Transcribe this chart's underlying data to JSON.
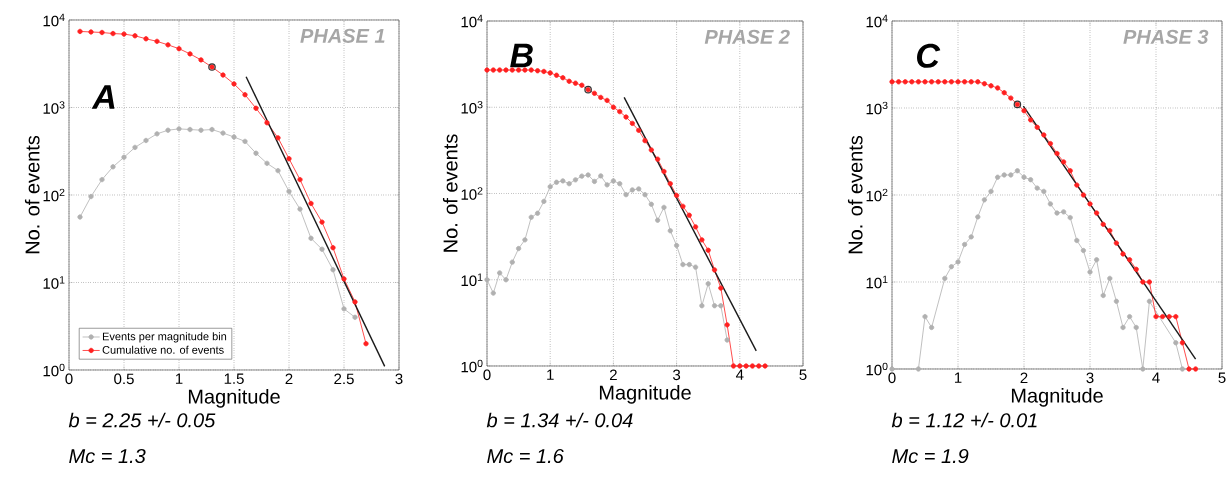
{
  "chart_data": [
    {
      "type": "line",
      "title": "A",
      "subtitle": "PHASE 1",
      "xlabel": "Magnitude",
      "ylabel": "No. of events",
      "annotations": [
        "b = 2.25 +/- 0.05",
        "Mc = 1.3"
      ],
      "log": "y",
      "grid": true,
      "legend": "bottom left",
      "marker": "circle",
      "xlim": [
        0,
        3
      ],
      "xticks": [
        0,
        0.5,
        1,
        1.5,
        2,
        2.5,
        3
      ],
      "ylim": [
        1,
        10000
      ],
      "yticks": [
        {
          "value": 1,
          "label": "10$^{0}$"
        },
        {
          "value": 10,
          "label": "10$^{1}$"
        },
        {
          "value": 100,
          "label": "10$^{2}$"
        },
        {
          "value": 1000,
          "label": "10$^{3}$"
        },
        {
          "value": 10000,
          "label": "10$^{4}$"
        }
      ],
      "series": [
        {
          "name": "Events per magnitude bin",
          "color": "#b0b0b0",
          "x": [
            0.1,
            0.2,
            0.3,
            0.4,
            0.5,
            0.6,
            0.7,
            0.8,
            0.9,
            1.0,
            1.1,
            1.2,
            1.3,
            1.4,
            1.5,
            1.6,
            1.7,
            1.8,
            1.9,
            2.0,
            2.1,
            2.2,
            2.3,
            2.4,
            2.5,
            2.6
          ],
          "values": [
            56,
            96,
            150,
            210,
            270,
            350,
            420,
            500,
            550,
            570,
            560,
            550,
            560,
            510,
            460,
            410,
            300,
            230,
            190,
            110,
            69,
            32,
            24,
            14,
            5,
            4
          ]
        },
        {
          "name": "Cumulative no. of events",
          "color": "#ff2020",
          "x": [
            0.1,
            0.2,
            0.3,
            0.4,
            0.5,
            0.6,
            0.7,
            0.8,
            0.9,
            1.0,
            1.1,
            1.2,
            1.3,
            1.4,
            1.5,
            1.6,
            1.7,
            1.8,
            1.9,
            2.0,
            2.1,
            2.2,
            2.3,
            2.4,
            2.5,
            2.6,
            2.7
          ],
          "values": [
            7400,
            7300,
            7200,
            7000,
            6900,
            6600,
            6100,
            5700,
            5200,
            4700,
            4100,
            3500,
            2900,
            2350,
            1860,
            1400,
            980,
            670,
            450,
            260,
            150,
            80,
            49,
            25,
            11,
            6,
            2
          ]
        },
        {
          "type": "scatter",
          "color": "#333333",
          "x": [
            1.3
          ],
          "values": [
            2900
          ]
        },
        {
          "type": "line",
          "marker": "none",
          "color": "#1a1a1a",
          "x": [
            1.61,
            2.87
          ],
          "values": [
            2250,
            1.1
          ]
        }
      ]
    },
    {
      "type": "line",
      "title": "B",
      "subtitle": "PHASE 2",
      "xlabel": "Magnitude",
      "ylabel": "No. of events",
      "annotations": [
        "b = 1.34 +/- 0.04",
        "Mc = 1.6"
      ],
      "log": "y",
      "grid": true,
      "marker": "circle",
      "xlim": [
        0,
        5
      ],
      "xticks": [
        0,
        1,
        2,
        3,
        4,
        5
      ],
      "ylim": [
        1,
        10000
      ],
      "yticks": [
        {
          "value": 1,
          "label": "10$^{0}$"
        },
        {
          "value": 10,
          "label": "10$^{1}$"
        },
        {
          "value": 100,
          "label": "10$^{2}$"
        },
        {
          "value": 1000,
          "label": "10$^{3}$"
        },
        {
          "value": 10000,
          "label": "10$^{4}$"
        }
      ],
      "series": [
        {
          "color": "#b0b0b0",
          "x": [
            0,
            0.1,
            0.2,
            0.3,
            0.4,
            0.5,
            0.6,
            0.7,
            0.8,
            0.9,
            1.0,
            1.1,
            1.2,
            1.3,
            1.4,
            1.5,
            1.6,
            1.7,
            1.8,
            1.9,
            2.0,
            2.1,
            2.2,
            2.3,
            2.4,
            2.5,
            2.6,
            2.7,
            2.8,
            2.9,
            3.0,
            3.1,
            3.2,
            3.3,
            3.4,
            3.5,
            3.6,
            3.7,
            3.8
          ],
          "values": [
            10,
            7,
            12,
            10,
            16,
            23,
            29,
            53,
            59,
            81,
            120,
            135,
            140,
            130,
            144,
            159,
            164,
            138,
            160,
            126,
            140,
            130,
            97,
            110,
            113,
            97,
            75,
            49,
            69,
            37,
            25,
            15,
            15,
            14,
            5,
            9,
            5,
            5,
            2
          ]
        },
        {
          "color": "#ff2020",
          "x": [
            0,
            0.1,
            0.2,
            0.3,
            0.4,
            0.5,
            0.6,
            0.7,
            0.8,
            0.9,
            1.0,
            1.1,
            1.2,
            1.3,
            1.4,
            1.5,
            1.6,
            1.7,
            1.8,
            1.9,
            2.0,
            2.1,
            2.2,
            2.3,
            2.4,
            2.5,
            2.6,
            2.7,
            2.8,
            2.9,
            3.0,
            3.1,
            3.2,
            3.3,
            3.4,
            3.5,
            3.6,
            3.7,
            3.8,
            3.9,
            4.0,
            4.1,
            4.2,
            4.3,
            4.4
          ],
          "values": [
            2700,
            2700,
            2700,
            2700,
            2700,
            2700,
            2700,
            2700,
            2650,
            2600,
            2500,
            2350,
            2200,
            2000,
            1900,
            1800,
            1600,
            1450,
            1300,
            1200,
            1000,
            890,
            770,
            650,
            540,
            410,
            320,
            250,
            180,
            130,
            95,
            71,
            56,
            41,
            29,
            22,
            13,
            8,
            3,
            1,
            1,
            1,
            1,
            1,
            1
          ]
        },
        {
          "type": "scatter",
          "color": "#333333",
          "x": [
            1.6
          ],
          "values": [
            1600
          ]
        },
        {
          "type": "line",
          "marker": "none",
          "color": "#1a1a1a",
          "x": [
            2.17,
            4.26
          ],
          "values": [
            1300,
            1.5
          ]
        }
      ]
    },
    {
      "type": "line",
      "title": "C",
      "subtitle": "PHASE 3",
      "xlabel": "Magnitude",
      "ylabel": "No. of events",
      "annotations": [
        "b = 1.12 +/- 0.01",
        "Mc = 1.9"
      ],
      "log": "y",
      "grid": true,
      "marker": "circle",
      "xlim": [
        0,
        5
      ],
      "xticks": [
        0,
        1,
        2,
        3,
        4,
        5
      ],
      "ylim": [
        1,
        10000
      ],
      "yticks": [
        {
          "value": 1,
          "label": "10$^{0}$"
        },
        {
          "value": 10,
          "label": "10$^{1}$"
        },
        {
          "value": 100,
          "label": "10$^{2}$"
        },
        {
          "value": 1000,
          "label": "10$^{3}$"
        },
        {
          "value": 10000,
          "label": "10$^{4}$"
        }
      ],
      "series": [
        {
          "color": "#b0b0b0",
          "x": [
            0,
            0.4,
            0.5,
            0.6,
            0.8,
            0.9,
            1.0,
            1.1,
            1.2,
            1.3,
            1.4,
            1.5,
            1.6,
            1.7,
            1.8,
            1.9,
            2.0,
            2.1,
            2.2,
            2.3,
            2.4,
            2.5,
            2.6,
            2.7,
            2.8,
            2.9,
            3.0,
            3.1,
            3.2,
            3.3,
            3.4,
            3.5,
            3.6,
            3.7,
            3.8,
            3.9,
            4.3,
            4.4
          ],
          "values": [
            1,
            1,
            4,
            3,
            11,
            15,
            17,
            27,
            33,
            56,
            88,
            110,
            160,
            170,
            170,
            190,
            160,
            150,
            120,
            110,
            79,
            62,
            64,
            55,
            30,
            23,
            13,
            18,
            7,
            11,
            6,
            3,
            4,
            3,
            1,
            6,
            2,
            1
          ]
        },
        {
          "color": "#ff2020",
          "x": [
            0,
            0.1,
            0.2,
            0.3,
            0.4,
            0.5,
            0.6,
            0.7,
            0.8,
            0.9,
            1.0,
            1.1,
            1.2,
            1.3,
            1.4,
            1.5,
            1.6,
            1.7,
            1.8,
            1.9,
            2.0,
            2.1,
            2.2,
            2.3,
            2.4,
            2.5,
            2.6,
            2.7,
            2.8,
            2.9,
            3.0,
            3.1,
            3.2,
            3.3,
            3.4,
            3.5,
            3.6,
            3.7,
            3.8,
            3.9,
            4.0,
            4.1,
            4.2,
            4.3,
            4.4,
            4.5,
            4.6
          ],
          "values": [
            2000,
            2000,
            2000,
            2000,
            2000,
            2000,
            2000,
            2000,
            2000,
            2000,
            2000,
            2000,
            2000,
            2000,
            1900,
            1800,
            1700,
            1500,
            1300,
            1100,
            930,
            730,
            600,
            490,
            390,
            300,
            240,
            190,
            130,
            100,
            79,
            62,
            46,
            39,
            28,
            21,
            18,
            14,
            10,
            10,
            4,
            4,
            4,
            4,
            2,
            1,
            1
          ]
        },
        {
          "type": "scatter",
          "color": "#333333",
          "x": [
            1.9
          ],
          "values": [
            1100
          ]
        },
        {
          "type": "line",
          "marker": "none",
          "color": "#1a1a1a",
          "x": [
            1.99,
            4.6
          ],
          "values": [
            1050,
            1.3
          ]
        }
      ]
    }
  ]
}
